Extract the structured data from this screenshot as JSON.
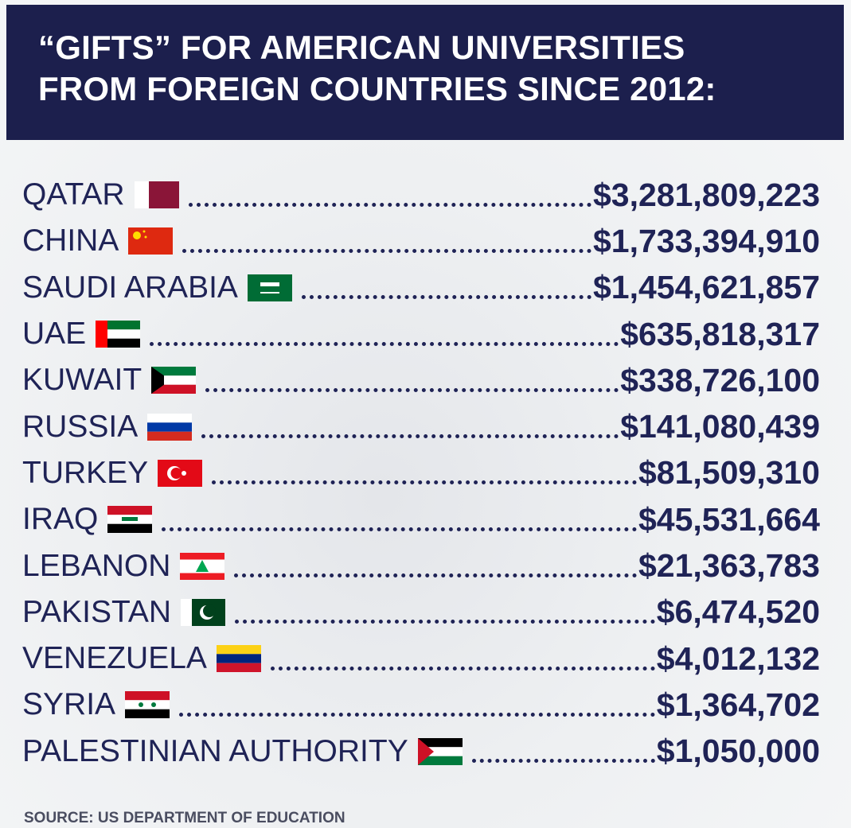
{
  "header": {
    "title_lines": [
      "“GIFTS” FOR AMERICAN UNIVERSITIES",
      "FROM FOREIGN COUNTRIES SINCE 2012:"
    ]
  },
  "rows": [
    {
      "country": "QATAR",
      "amount": "$3,281,809,223"
    },
    {
      "country": "CHINA",
      "amount": "$1,733,394,910"
    },
    {
      "country": "SAUDI ARABIA",
      "amount": "$1,454,621,857"
    },
    {
      "country": "UAE",
      "amount": "$635,818,317"
    },
    {
      "country": "KUWAIT",
      "amount": "$338,726,100"
    },
    {
      "country": "RUSSIA",
      "amount": "$141,080,439"
    },
    {
      "country": "TURKEY",
      "amount": "$81,509,310"
    },
    {
      "country": "IRAQ",
      "amount": "$45,531,664"
    },
    {
      "country": "LEBANON",
      "amount": "$21,363,783"
    },
    {
      "country": "PAKISTAN",
      "amount": "$6,474,520"
    },
    {
      "country": "VENEZUELA",
      "amount": "$4,012,132"
    },
    {
      "country": "SYRIA",
      "amount": "$1,364,702"
    },
    {
      "country": "PALESTINIAN AUTHORITY",
      "amount": "$1,050,000"
    }
  ],
  "footer": {
    "source": "SOURCE: US DEPARTMENT OF EDUCATION"
  }
}
